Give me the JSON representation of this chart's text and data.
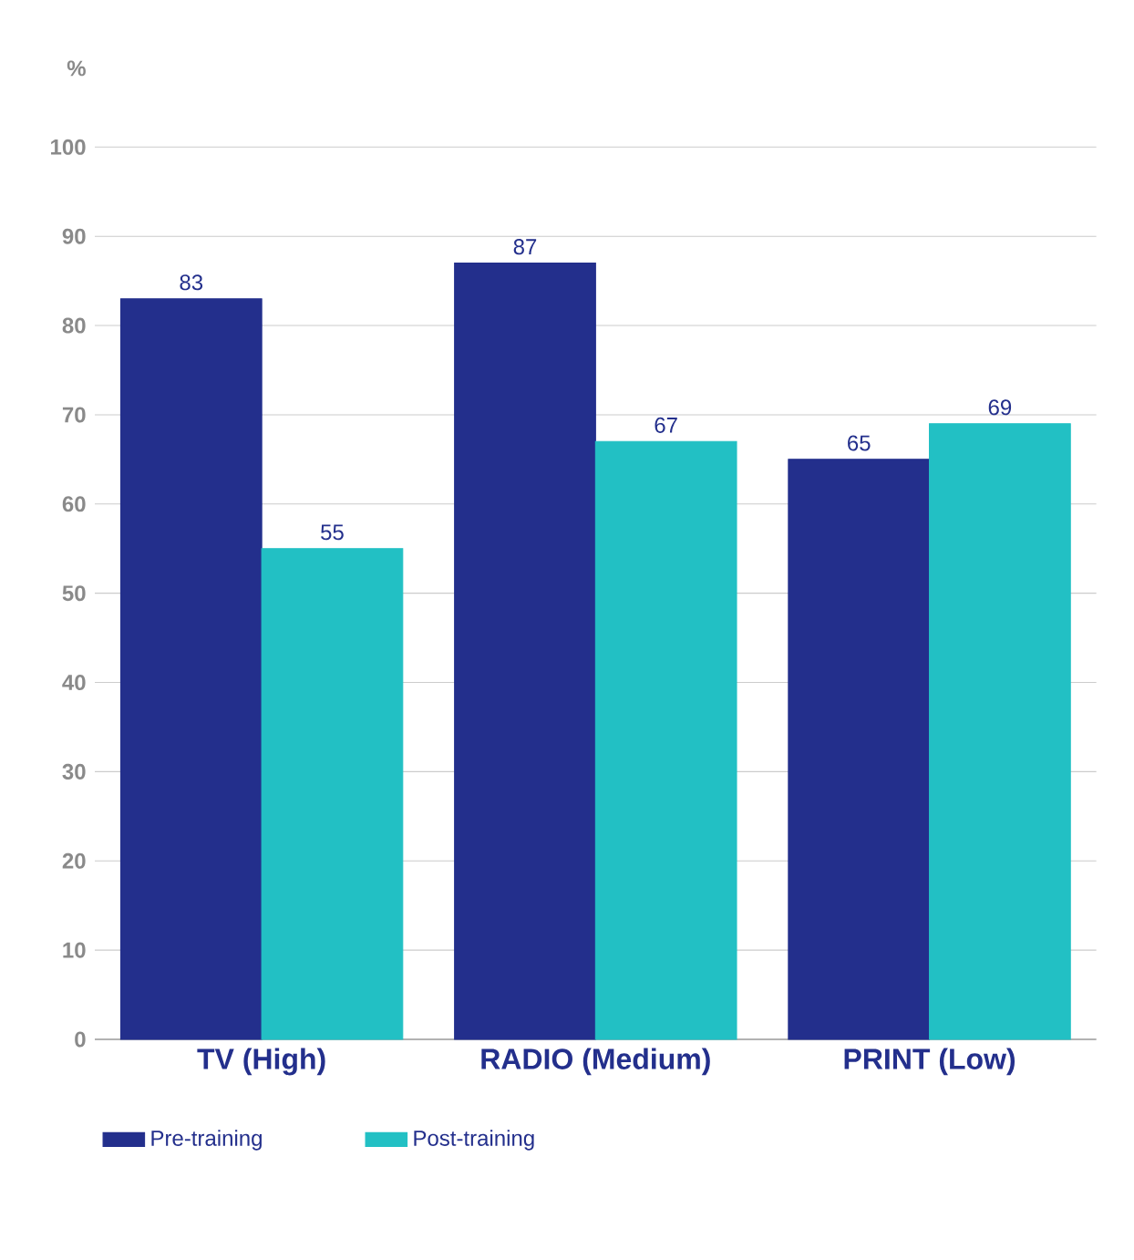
{
  "chart_data": {
    "type": "bar",
    "ylabel": "%",
    "categories": [
      "TV (High)",
      "RADIO (Medium)",
      "PRINT (Low)"
    ],
    "series": [
      {
        "name": "Pre-training",
        "color": "#232f8c",
        "values": [
          83,
          87,
          65
        ]
      },
      {
        "name": "Post-training",
        "color": "#22c0c4",
        "values": [
          55,
          67,
          69
        ]
      }
    ],
    "ylim": [
      0,
      100
    ],
    "yticks": [
      0,
      10,
      20,
      30,
      40,
      50,
      60,
      70,
      80,
      90,
      100
    ],
    "grid": "y",
    "legend": "bottom left",
    "data_labels": true
  }
}
